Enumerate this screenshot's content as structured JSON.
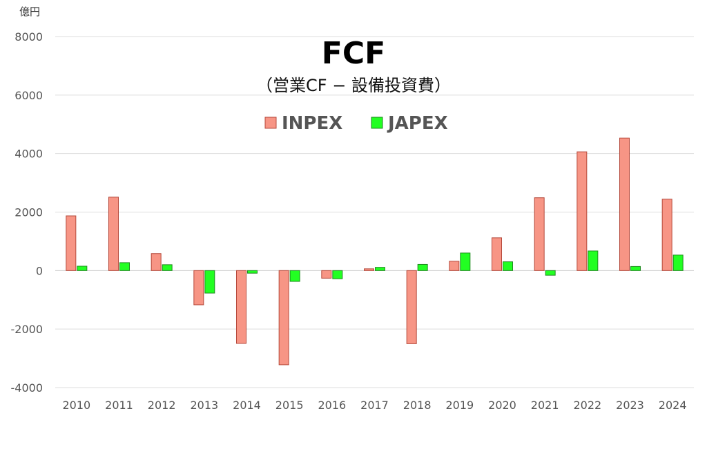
{
  "chart_data": {
    "type": "bar",
    "title": "FCF",
    "subtitle": "（営業CF − 設備投資費）",
    "unit_label": "億円",
    "categories": [
      "2010",
      "2011",
      "2012",
      "2013",
      "2014",
      "2015",
      "2016",
      "2017",
      "2018",
      "2019",
      "2020",
      "2021",
      "2022",
      "2023",
      "2024"
    ],
    "series": [
      {
        "name": "INPEX",
        "color": "#f79585",
        "stroke": "#b5483a",
        "values": [
          1870,
          2510,
          580,
          -1170,
          -2490,
          -3220,
          -260,
          60,
          -2500,
          320,
          1120,
          2490,
          4060,
          4530,
          2440
        ]
      },
      {
        "name": "JAPEX",
        "color": "#22ff22",
        "stroke": "#1f8a1f",
        "values": [
          150,
          270,
          200,
          -770,
          -90,
          -370,
          -280,
          110,
          210,
          600,
          300,
          -160,
          670,
          140,
          530
        ]
      }
    ],
    "ylim": [
      -4000,
      8000
    ],
    "yticks": [
      -4000,
      -2000,
      0,
      2000,
      4000,
      6000,
      8000
    ],
    "grid": true,
    "legend_position": "top-center"
  }
}
